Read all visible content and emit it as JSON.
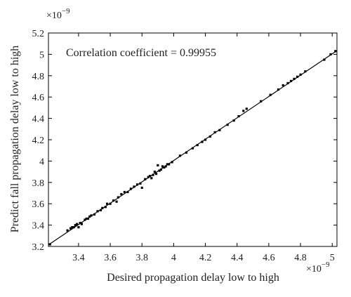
{
  "chart_data": {
    "type": "scatter",
    "title": "",
    "xlabel": "Desired propagation delay low to high",
    "ylabel": "Predict fall propagation delay low to high",
    "x_multiplier": "×10",
    "x_multiplier_exp": "−9",
    "y_multiplier": "×10",
    "y_multiplier_exp": "−9",
    "xlim": [
      3.21,
      5.03
    ],
    "ylim": [
      3.2,
      5.2
    ],
    "xticks": [
      3.4,
      3.6,
      3.8,
      4,
      4.2,
      4.4,
      4.6,
      4.8,
      5
    ],
    "xtick_labels": [
      "3.4",
      "3.6",
      "3.8",
      "4",
      "4.2",
      "4.4",
      "4.6",
      "4.8",
      "5"
    ],
    "yticks": [
      3.2,
      3.4,
      3.6,
      3.8,
      4,
      4.2,
      4.4,
      4.6,
      4.8,
      5,
      5.2
    ],
    "ytick_labels": [
      "3.2",
      "3.4",
      "3.6",
      "3.8",
      "4",
      "4.2",
      "4.4",
      "4.6",
      "4.8",
      "5",
      "5.2"
    ],
    "annotation": "Correlation coefficient = 0.99955",
    "fit_line": {
      "x": [
        3.21,
        5.03
      ],
      "y": [
        3.215,
        5.035
      ]
    },
    "points": {
      "x": [
        3.22,
        3.33,
        3.35,
        3.36,
        3.37,
        3.38,
        3.39,
        3.4,
        3.41,
        3.42,
        3.44,
        3.45,
        3.46,
        3.47,
        3.48,
        3.5,
        3.52,
        3.54,
        3.55,
        3.57,
        3.58,
        3.6,
        3.62,
        3.64,
        3.65,
        3.67,
        3.69,
        3.71,
        3.73,
        3.75,
        3.77,
        3.79,
        3.8,
        3.82,
        3.84,
        3.85,
        3.86,
        3.87,
        3.88,
        3.89,
        3.9,
        3.91,
        3.92,
        3.93,
        3.94,
        3.95,
        3.96,
        3.97,
        3.99,
        4.04,
        4.08,
        4.12,
        4.15,
        4.18,
        4.2,
        4.23,
        4.26,
        4.29,
        4.34,
        4.38,
        4.41,
        4.44,
        4.46,
        4.55,
        4.61,
        4.66,
        4.69,
        4.72,
        4.74,
        4.76,
        4.78,
        4.8,
        4.83,
        4.95,
        4.99,
        5.02
      ],
      "y": [
        3.22,
        3.35,
        3.37,
        3.38,
        3.38,
        3.4,
        3.41,
        3.38,
        3.42,
        3.41,
        3.45,
        3.46,
        3.46,
        3.48,
        3.49,
        3.5,
        3.53,
        3.54,
        3.56,
        3.57,
        3.6,
        3.6,
        3.63,
        3.62,
        3.66,
        3.69,
        3.71,
        3.71,
        3.74,
        3.76,
        3.78,
        3.79,
        3.75,
        3.83,
        3.85,
        3.86,
        3.84,
        3.87,
        3.9,
        3.88,
        3.96,
        3.91,
        3.92,
        3.95,
        3.94,
        3.95,
        3.97,
        3.97,
        3.99,
        4.05,
        4.08,
        4.12,
        4.15,
        4.18,
        4.2,
        4.23,
        4.27,
        4.29,
        4.34,
        4.38,
        4.42,
        4.47,
        4.49,
        4.56,
        4.62,
        4.67,
        4.71,
        4.73,
        4.75,
        4.77,
        4.79,
        4.81,
        4.84,
        4.95,
        5.0,
        5.03
      ]
    }
  }
}
